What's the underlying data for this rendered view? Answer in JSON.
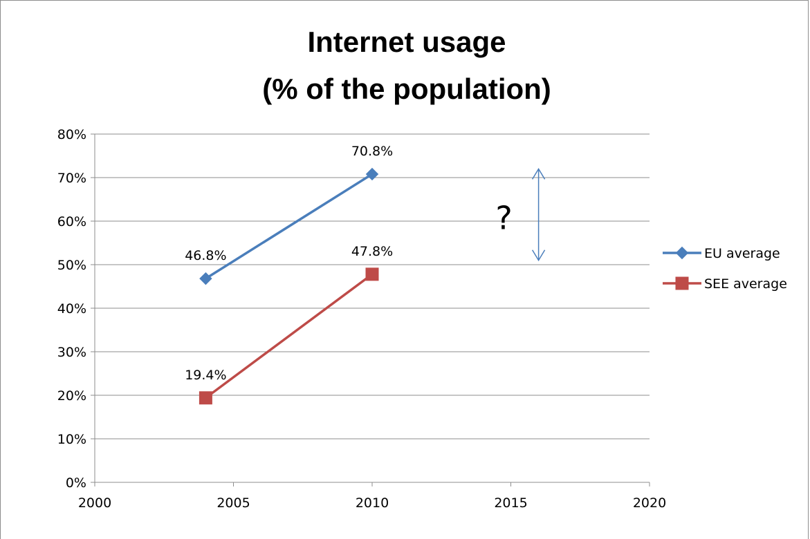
{
  "chart_data": {
    "type": "line",
    "title_lines": [
      "Internet usage",
      "(% of the population)"
    ],
    "x_ticks": [
      "2000",
      "2005",
      "2010",
      "2015",
      "2020"
    ],
    "xlim": [
      2000,
      2020
    ],
    "y_ticks": [
      "0%",
      "10%",
      "20%",
      "30%",
      "40%",
      "50%",
      "60%",
      "70%",
      "80%"
    ],
    "ylim": [
      0,
      80
    ],
    "grid": true,
    "legend_position": "right",
    "series": [
      {
        "name": "EU average",
        "color": "#4a7ebb",
        "marker": "diamond",
        "points": [
          {
            "x": 2004,
            "y": 46.8,
            "label": "46.8%"
          },
          {
            "x": 2010,
            "y": 70.8,
            "label": "70.8%"
          }
        ]
      },
      {
        "name": "SEE average",
        "color": "#be4b48",
        "marker": "square",
        "points": [
          {
            "x": 2004,
            "y": 19.4,
            "label": "19.4%"
          },
          {
            "x": 2010,
            "y": 47.8,
            "label": "47.8%"
          }
        ]
      }
    ],
    "annotation": {
      "text": "?",
      "arrow": {
        "x": 2016,
        "y_from": 51,
        "y_to": 72
      },
      "color": "#4a7ebb"
    }
  }
}
